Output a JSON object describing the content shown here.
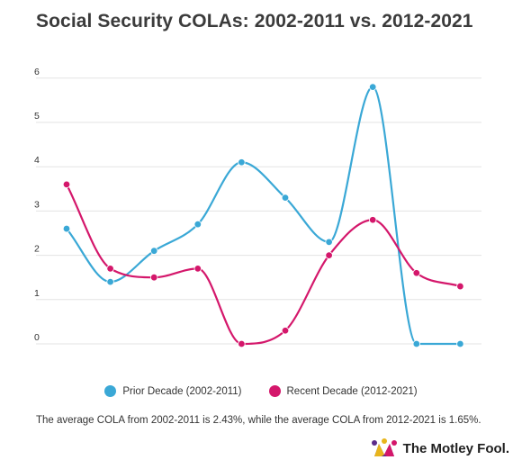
{
  "title": "Social Security COLAs: 2002-2011 vs. 2012-2021",
  "note": "The average COLA from 2002-2011 is 2.43%, while the average COLA from 2012-2021 is 1.65%.",
  "brand": "The Motley Fool.",
  "chart_data": {
    "type": "line",
    "smooth": true,
    "grid": true,
    "legend": "bottom",
    "ylim": [
      0,
      6
    ],
    "yticks": [
      "0",
      "1",
      "2",
      "3",
      "4",
      "5",
      "6"
    ],
    "series": [
      {
        "name": "Prior Decade (2002-2011)",
        "color": "#3aa8d6",
        "values": [
          2.6,
          1.4,
          2.1,
          2.7,
          4.1,
          3.3,
          2.3,
          5.8,
          0,
          0
        ]
      },
      {
        "name": "Recent Decade (2012-2021)",
        "color": "#d4176b",
        "values": [
          3.6,
          1.7,
          1.5,
          1.7,
          0,
          0.3,
          2.0,
          2.8,
          1.6,
          1.3
        ]
      }
    ]
  }
}
